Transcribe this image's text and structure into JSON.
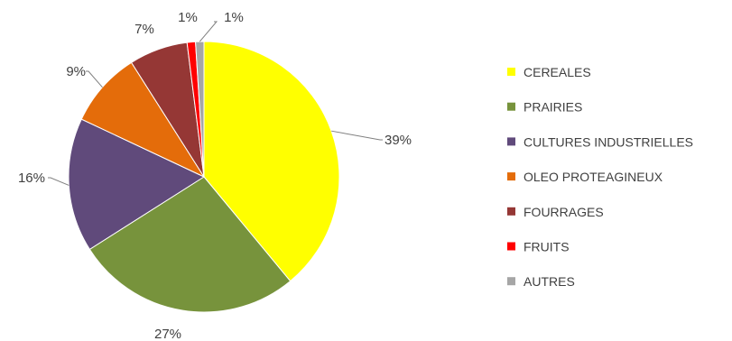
{
  "chart_data": {
    "type": "pie",
    "title": "",
    "legend_position": "right",
    "slices": [
      {
        "label": "CEREALES",
        "value": 39,
        "display": "39%",
        "color": "#ffff00"
      },
      {
        "label": "PRAIRIES",
        "value": 27,
        "display": "27%",
        "color": "#77933c"
      },
      {
        "label": "CULTURES INDUSTRIELLES",
        "value": 16,
        "display": "16%",
        "color": "#604a7b"
      },
      {
        "label": "OLEO PROTEAGINEUX",
        "value": 9,
        "display": "9%",
        "color": "#e46c0a"
      },
      {
        "label": "FOURRAGES",
        "value": 7,
        "display": "7%",
        "color": "#953735"
      },
      {
        "label": "FRUITS",
        "value": 1,
        "display": "1%",
        "color": "#ff0000"
      },
      {
        "label": "AUTRES",
        "value": 1,
        "display": "1%",
        "color": "#a6a6a6"
      }
    ]
  }
}
